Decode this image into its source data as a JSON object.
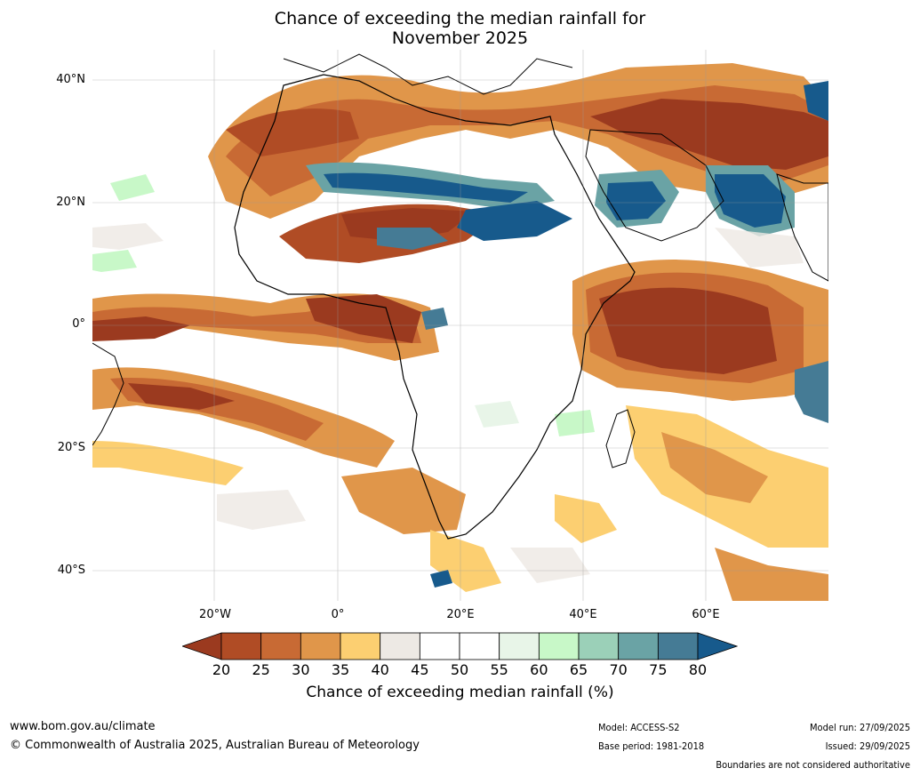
{
  "title_line1": "Chance of exceeding the median rainfall for",
  "title_line2": "November 2025",
  "lat_labels": [
    "40°N",
    "20°N",
    "0°",
    "20°S",
    "40°S"
  ],
  "lon_labels": [
    "20°W",
    "0°",
    "20°E",
    "40°E",
    "60°E"
  ],
  "colorbar": {
    "ticks": [
      "20",
      "25",
      "30",
      "35",
      "40",
      "45",
      "50",
      "55",
      "60",
      "65",
      "70",
      "75",
      "80"
    ],
    "colors": [
      "#9b3a1f",
      "#b04c25",
      "#c86a34",
      "#e0964a",
      "#fccf71",
      "#ede9e4",
      "#ffffff",
      "#ffffff",
      "#e8f5e8",
      "#c8f8c8",
      "#9bd0b8",
      "#6aa3a5",
      "#457b95",
      "#175a8c"
    ],
    "title": "Chance of exceeding median rainfall (%)"
  },
  "footer": {
    "url": "www.bom.gov.au/climate",
    "copyright": "© Commonwealth of Australia 2025, Australian Bureau of Meteorology",
    "model": "Model: ACCESS-S2",
    "base_period": "Base period: 1981-2018",
    "model_run": "Model run: 27/09/2025",
    "issued": "Issued: 29/09/2025",
    "disclaimer": "Boundaries are not considered authoritative"
  }
}
